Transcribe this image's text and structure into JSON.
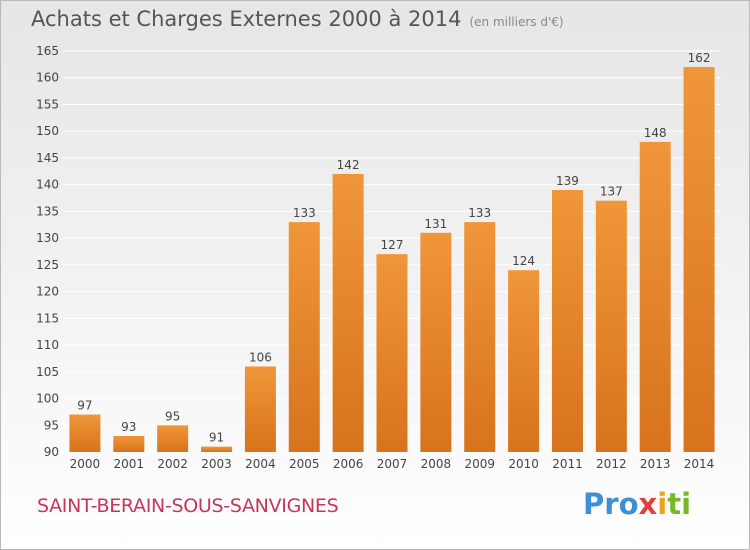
{
  "title": "Achats et Charges Externes 2000 à 2014",
  "unit": "(en milliers d'€)",
  "commune": "SAINT-BERAIN-SOUS-SANVIGNES",
  "brand": {
    "text": "Proxiti",
    "colors": [
      "#3d8fd6",
      "#f0a020",
      "#e04040",
      "#77b82a"
    ]
  },
  "colors": {
    "bar": "#f0963a",
    "bar_dark": "#d7731c",
    "grid": "#ffffff",
    "axis_text": "#444444"
  },
  "chart_data": {
    "type": "bar",
    "title": "Achats et Charges Externes 2000 à 2014",
    "xlabel": "",
    "ylabel": "",
    "categories": [
      "2000",
      "2001",
      "2002",
      "2003",
      "2004",
      "2005",
      "2006",
      "2007",
      "2008",
      "2009",
      "2010",
      "2011",
      "2012",
      "2013",
      "2014"
    ],
    "values": [
      97,
      93,
      95,
      91,
      106,
      133,
      142,
      127,
      131,
      133,
      124,
      139,
      137,
      148,
      162
    ],
    "ylim": [
      90,
      165
    ],
    "yticks": [
      90,
      95,
      100,
      105,
      110,
      115,
      120,
      125,
      130,
      135,
      140,
      145,
      150,
      155,
      160,
      165
    ],
    "grid": true
  }
}
